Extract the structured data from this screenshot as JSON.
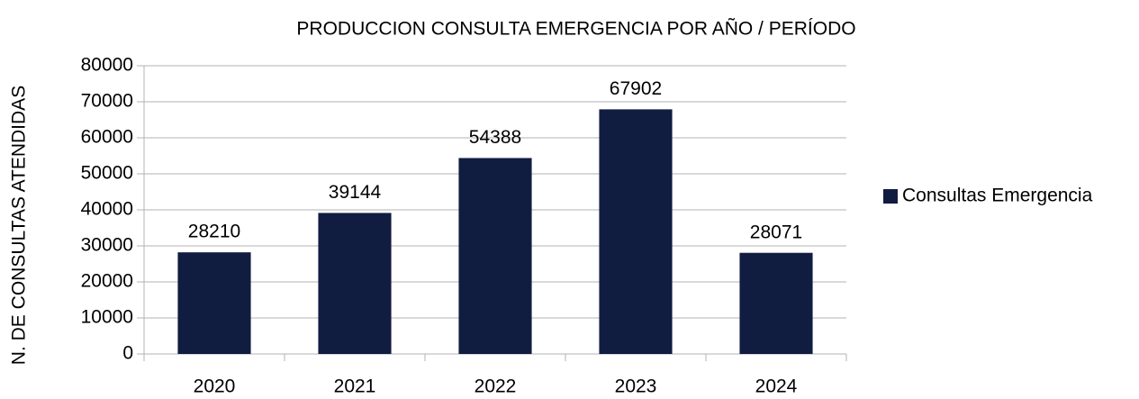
{
  "chart_data": {
    "type": "bar",
    "title": "PRODUCCION CONSULTA EMERGENCIA POR AÑO / PERÍODO",
    "y_label": "N. DE CONSULTAS ATENDIDAS",
    "categories": [
      "2020",
      "2021",
      "2022",
      "2023",
      "2024"
    ],
    "series": [
      {
        "name": "Consultas Emergencia",
        "color": "#111c41",
        "values": [
          28210,
          39144,
          54388,
          67902,
          28071
        ]
      }
    ],
    "ylim": [
      0,
      80000
    ],
    "yticks": [
      0,
      10000,
      20000,
      30000,
      40000,
      50000,
      60000,
      70000,
      80000
    ],
    "grid": true,
    "legend": "right",
    "data_labels": true
  }
}
